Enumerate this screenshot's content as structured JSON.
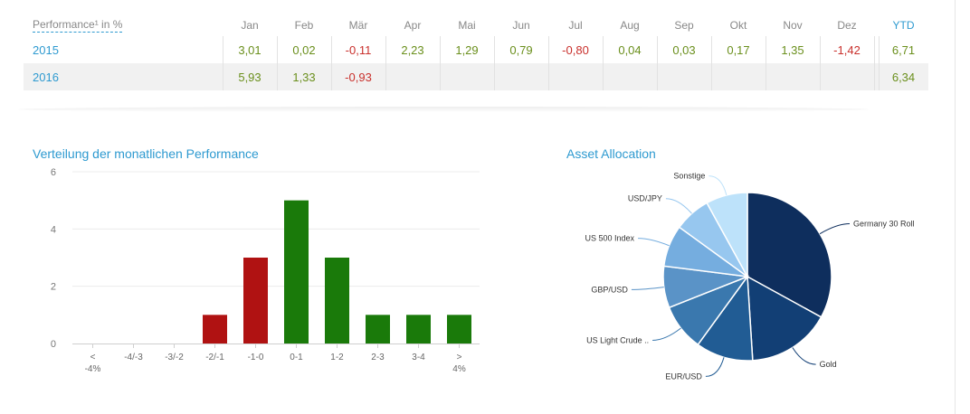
{
  "table": {
    "label_header": "Performance¹  in %",
    "months": [
      "Jan",
      "Feb",
      "Mär",
      "Apr",
      "Mai",
      "Jun",
      "Jul",
      "Aug",
      "Sep",
      "Okt",
      "Nov",
      "Dez"
    ],
    "ytd_header": "YTD",
    "rows": [
      {
        "year": "2015",
        "values": [
          "3,01",
          "0,02",
          "-0,11",
          "2,23",
          "1,29",
          "0,79",
          "-0,80",
          "0,04",
          "0,03",
          "0,17",
          "1,35",
          "-1,42"
        ],
        "ytd": "6,71"
      },
      {
        "year": "2016",
        "values": [
          "5,93",
          "1,33",
          "-0,93",
          "",
          "",
          "",
          "",
          "",
          "",
          "",
          "",
          ""
        ],
        "ytd": "6,34"
      }
    ]
  },
  "colors": {
    "accent": "#2e9ad0",
    "positive": "#6a8f1c",
    "negative": "#c9302c",
    "bar_positive": "#1a7a0a",
    "bar_negative": "#b01212",
    "pie": [
      "#0e2e5d",
      "#123f75",
      "#215c94",
      "#3a78ae",
      "#5a93c7",
      "#75addf",
      "#97c7ef",
      "#bde2fa"
    ]
  },
  "chart_data": [
    {
      "type": "bar",
      "title": "Verteilung der monatlichen Performance",
      "categories": [
        "< -4%",
        "-4/-3",
        "-3/-2",
        "-2/-1",
        "-1-0",
        "0-1",
        "1-2",
        "2-3",
        "3-4",
        "> 4%"
      ],
      "values": [
        0,
        0,
        0,
        1,
        3,
        5,
        3,
        1,
        1,
        1
      ],
      "y_ticks": [
        "0",
        "2",
        "4",
        "6"
      ],
      "ylim": [
        0,
        6
      ],
      "xlabel": "",
      "ylabel": "",
      "grid": true
    },
    {
      "type": "pie",
      "title": "Asset Allocation",
      "labels": [
        "Germany 30 Roll",
        "Gold",
        "EUR/USD",
        "US Light Crude ..",
        "GBP/USD",
        "US 500 Index",
        "USD/JPY",
        "Sonstige"
      ],
      "values": [
        33,
        16,
        11,
        9,
        8,
        8,
        7,
        8
      ]
    }
  ]
}
